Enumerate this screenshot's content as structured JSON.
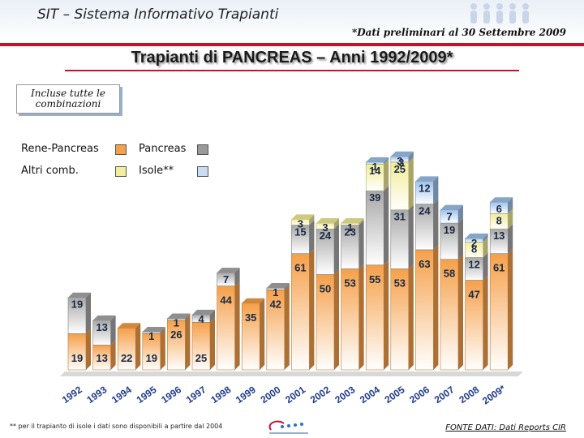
{
  "header": {
    "app_title": "SIT – Sistema Informativo Trapianti",
    "preliminary_note": "*Dati preliminari al 30 Settembre 2009"
  },
  "title": "Trapianti di PANCREAS – Anni 1992/2009*",
  "note_box": {
    "line1": "Incluse tutte le",
    "line2": "combinazioni"
  },
  "legend": [
    {
      "label": "Rene-Pancreas",
      "color": "#f5a04a"
    },
    {
      "label": "Pancreas",
      "color": "#9a9a9a"
    },
    {
      "label": "Altri comb.",
      "color": "#f3ee9a"
    },
    {
      "label": "Isole**",
      "color": "#9ec2ea"
    }
  ],
  "footer": {
    "footnote": "** per il trapianto di isole i dati sono disponibili a partire dal 2004",
    "source": "FONTE DATI: Dati Reports CIR"
  },
  "colors": {
    "rene_pancreas": "#f5a04a",
    "pancreas": "#a8a8a8",
    "altri": "#f2ec96",
    "isole": "#9ec2ea",
    "accent": "#c8102e",
    "axis_text": "#1f3c8c"
  },
  "chart_data": {
    "type": "bar",
    "stacked": true,
    "categories": [
      "1992",
      "1993",
      "1994",
      "1995",
      "1996",
      "1997",
      "1998",
      "1999",
      "2000",
      "2001",
      "2002",
      "2003",
      "2004",
      "2005",
      "2006",
      "2007",
      "2008",
      "2009*"
    ],
    "series": [
      {
        "name": "Rene-Pancreas",
        "values": [
          19,
          13,
          22,
          19,
          26,
          25,
          44,
          35,
          42,
          61,
          50,
          53,
          55,
          53,
          63,
          58,
          47,
          61
        ]
      },
      {
        "name": "Pancreas",
        "values": [
          19,
          13,
          0,
          1,
          1,
          4,
          7,
          0,
          1,
          15,
          24,
          23,
          39,
          31,
          24,
          19,
          12,
          13
        ]
      },
      {
        "name": "Altri comb.",
        "values": [
          0,
          0,
          0,
          0,
          0,
          0,
          0,
          0,
          0,
          3,
          3,
          1,
          14,
          25,
          0,
          0,
          8,
          8
        ]
      },
      {
        "name": "Isole**",
        "values": [
          0,
          0,
          0,
          0,
          0,
          0,
          0,
          0,
          0,
          0,
          0,
          0,
          1,
          3,
          12,
          7,
          2,
          6
        ]
      }
    ],
    "extra_labels": [
      {
        "category": "2005",
        "series": "Isole**",
        "value": 3
      }
    ],
    "ylim": [
      0,
      120
    ],
    "title": "Trapianti di PANCREAS – Anni 1992/2009*",
    "xlabel": "",
    "ylabel": ""
  }
}
